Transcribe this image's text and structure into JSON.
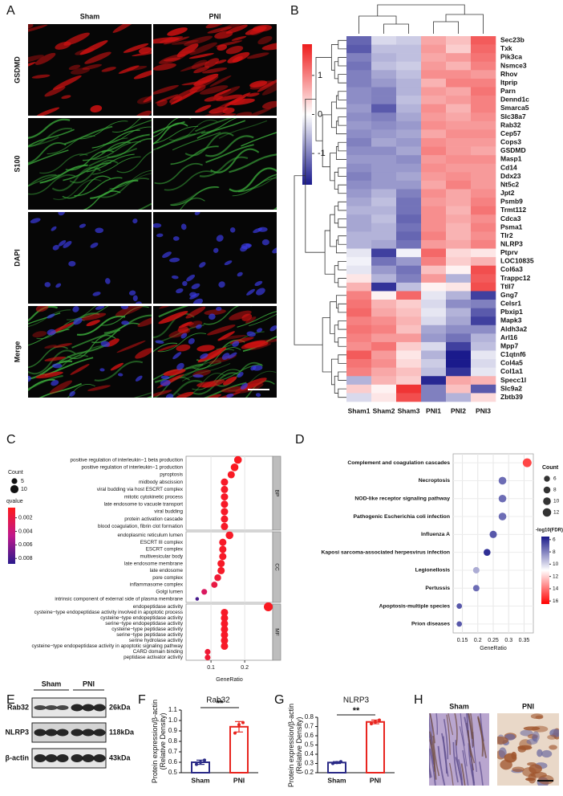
{
  "panel_labels": [
    "A",
    "B",
    "C",
    "D",
    "E",
    "F",
    "G",
    "H"
  ],
  "microscopy": {
    "columns": [
      "Sham",
      "PNI"
    ],
    "rows": [
      "GSDMD",
      "S100",
      "DAPI",
      "Merge"
    ]
  },
  "western_blot": {
    "groups": [
      "Sham",
      "PNI"
    ],
    "bands": [
      "Rab32",
      "NLRP3",
      "β-actin"
    ],
    "sizes": [
      "26kDa",
      "118kDa",
      "43kDa"
    ]
  },
  "ihc": {
    "columns": [
      "Sham",
      "PNI"
    ]
  },
  "chart_data": [
    {
      "type": "heatmap",
      "x": [
        "Sham1",
        "Sham2",
        "Sham3",
        "PNI1",
        "PNI2",
        "PNI3"
      ],
      "y": [
        "Sec23b",
        "Txk",
        "Pik3ca",
        "Nsmce3",
        "Rhov",
        "Itprip",
        "Parn",
        "Dennd1c",
        "Smarca5",
        "Slc38a7",
        "Rab32",
        "Cep57",
        "Cops3",
        "GSDMD",
        "Masp1",
        "Cd14",
        "Ddx23",
        "Nt5c2",
        "Jpt2",
        "Psmb9",
        "Trmt112",
        "Cdca3",
        "Psma1",
        "Tlr2",
        "NLRP3",
        "Ptprv",
        "LOC10835",
        "Col6a3",
        "Trappc12",
        "Ttll7",
        "Gng7",
        "Celsr1",
        "Pbxip1",
        "Mapk3",
        "Aldh3a2",
        "Arl16",
        "Mpp7",
        "C1qtnf6",
        "Col4a5",
        "Col1a1",
        "Specc1l",
        "Slc9a2",
        "Zbtb39"
      ],
      "values": [
        [
          -1.2,
          -0.3,
          -0.4,
          0.7,
          0.5,
          1.3
        ],
        [
          -1.3,
          -0.5,
          -0.5,
          0.8,
          0.4,
          1.2
        ],
        [
          -1.0,
          -0.6,
          -0.5,
          0.7,
          0.8,
          1.1
        ],
        [
          -1.1,
          -0.5,
          -0.4,
          0.8,
          0.6,
          1.0
        ],
        [
          -1.0,
          -0.7,
          -0.5,
          0.9,
          0.9,
          0.8
        ],
        [
          -1.0,
          -0.8,
          -0.6,
          0.6,
          1.0,
          1.0
        ],
        [
          -0.9,
          -1.0,
          -0.6,
          0.8,
          0.7,
          1.1
        ],
        [
          -0.9,
          -1.0,
          -0.5,
          0.7,
          0.8,
          1.0
        ],
        [
          -0.8,
          -1.3,
          -0.6,
          0.9,
          0.6,
          1.0
        ],
        [
          -0.9,
          -1.0,
          -0.7,
          0.8,
          0.7,
          0.9
        ],
        [
          -0.8,
          -0.9,
          -0.8,
          0.9,
          0.8,
          0.8
        ],
        [
          -0.9,
          -0.8,
          -0.7,
          0.7,
          0.9,
          0.9
        ],
        [
          -1.0,
          -0.7,
          -0.8,
          0.9,
          0.8,
          0.8
        ],
        [
          -0.9,
          -0.9,
          -0.7,
          1.0,
          0.8,
          0.7
        ],
        [
          -0.8,
          -0.8,
          -0.9,
          0.8,
          0.9,
          0.9
        ],
        [
          -0.9,
          -0.8,
          -0.8,
          0.9,
          0.8,
          0.8
        ],
        [
          -1.0,
          -0.8,
          -0.7,
          0.8,
          0.9,
          0.8
        ],
        [
          -0.9,
          -0.8,
          -0.8,
          0.7,
          1.0,
          0.8
        ],
        [
          -0.8,
          -0.6,
          -1.0,
          0.9,
          0.7,
          0.9
        ],
        [
          -0.7,
          -0.5,
          -1.1,
          0.8,
          0.7,
          1.0
        ],
        [
          -0.6,
          -0.6,
          -1.1,
          0.9,
          0.6,
          1.1
        ],
        [
          -0.7,
          -0.5,
          -1.2,
          0.9,
          0.7,
          0.9
        ],
        [
          -0.7,
          -0.6,
          -1.1,
          0.9,
          0.6,
          1.0
        ],
        [
          -0.6,
          -0.6,
          -1.2,
          1.0,
          0.6,
          0.9
        ],
        [
          -0.6,
          -0.7,
          -1.1,
          0.8,
          0.7,
          1.0
        ],
        [
          -0.2,
          -1.5,
          -0.1,
          1.2,
          0.3,
          0.2
        ],
        [
          -0.1,
          -1.1,
          -0.8,
          1.0,
          0.4,
          0.6
        ],
        [
          -0.2,
          -0.8,
          -1.1,
          0.5,
          0.1,
          1.4
        ],
        [
          0.2,
          -0.6,
          -1.0,
          0.8,
          -0.6,
          1.3
        ],
        [
          0.6,
          -1.6,
          -0.5,
          0.1,
          0.2,
          1.4
        ],
        [
          1.0,
          0.1,
          1.2,
          -0.2,
          -0.6,
          -1.5
        ],
        [
          1.1,
          0.6,
          0.4,
          -0.3,
          -0.9,
          -1.0
        ],
        [
          1.2,
          0.7,
          0.5,
          -0.2,
          -0.6,
          -1.3
        ],
        [
          1.0,
          0.9,
          0.6,
          -0.3,
          -0.7,
          -1.5
        ],
        [
          1.1,
          1.0,
          0.5,
          -0.7,
          -0.9,
          -0.9
        ],
        [
          1.0,
          0.8,
          0.8,
          -0.8,
          -1.1,
          -0.6
        ],
        [
          0.9,
          1.1,
          0.4,
          -0.3,
          -1.5,
          -0.5
        ],
        [
          1.3,
          0.8,
          0.2,
          -0.6,
          -1.8,
          -0.2
        ],
        [
          1.1,
          0.9,
          0.3,
          -0.4,
          -1.8,
          -0.3
        ],
        [
          1.0,
          0.7,
          0.5,
          -0.5,
          -1.6,
          -0.2
        ],
        [
          -0.6,
          0.6,
          0.4,
          -1.7,
          0.7,
          0.6
        ],
        [
          0.4,
          0.1,
          1.6,
          -1.0,
          0.5,
          -1.3
        ],
        [
          -0.3,
          0.2,
          1.4,
          -1.0,
          -0.6,
          0.3
        ]
      ],
      "zlim": [
        -1.8,
        1.8
      ],
      "colorbar_ticks": [
        1,
        0,
        -1
      ],
      "colors": [
        "#1a1a8c",
        "#ffffff",
        "#ee1c1c"
      ],
      "highlighted": [
        10,
        24
      ],
      "highlight_color": "#e8251f"
    },
    {
      "type": "dot",
      "x_label": "GeneRatio",
      "xlim": [
        0.026,
        0.283
      ],
      "xticks": [
        0.1,
        0.2
      ],
      "grid": true,
      "facets": [
        {
          "name": "BP",
          "categories": [
            "positive regulation of interleukin−1 beta production",
            "positive regulation of interleukin−1 production",
            "pyroptosis",
            "midbody abscission",
            "viral budding via host ESCRT complex",
            "mitotic cytokinetic process",
            "late endosome to vacuole transport",
            "viral budding",
            "protein activation cascade",
            "blood coagulation, fibrin clot formation"
          ],
          "values": [
            0.18,
            0.17,
            0.16,
            0.14,
            0.14,
            0.14,
            0.14,
            0.14,
            0.14,
            0.14
          ],
          "sizes": [
            9,
            9,
            8,
            8,
            8,
            8,
            8,
            8,
            8,
            8
          ],
          "color_values": [
            0.0008,
            0.0008,
            0.0009,
            0.001,
            0.001,
            0.001,
            0.001,
            0.001,
            0.001,
            0.001
          ],
          "highlighted": [
            2
          ]
        },
        {
          "name": "CC",
          "categories": [
            "endoplasmic reticulum lumen",
            "ESCRT III complex",
            "ESCRT complex",
            "multivesicular body",
            "late endosome membrane",
            "late endosome",
            "pore complex",
            "inflammasome complex",
            "Golgi lumen",
            "intrinsic component of external side of plasma membrane"
          ],
          "values": [
            0.155,
            0.135,
            0.135,
            0.135,
            0.13,
            0.13,
            0.12,
            0.11,
            0.08,
            0.059
          ],
          "sizes": [
            9,
            8,
            8,
            8,
            8,
            8,
            7,
            6,
            5,
            2
          ],
          "color_values": [
            0.001,
            0.001,
            0.001,
            0.001,
            0.001,
            0.001,
            0.0015,
            0.002,
            0.003,
            0.008
          ],
          "highlighted": []
        },
        {
          "name": "MF",
          "categories": [
            "endopeptidase activity",
            "cysteine−type endopeptidase activity involved in apoptotic process",
            "cysteine−type endopeptidase activity",
            "serine−type endopeptidase activity",
            "cysteine−type peptidase activity",
            "serine−type peptidase activity",
            "serine hydrolase activity",
            "cysteine−type endopeptidase activity  in apoptotic signaling pathway",
            "CARD domain binding",
            "peptidase activator activity"
          ],
          "values": [
            0.27,
            0.14,
            0.14,
            0.14,
            0.14,
            0.14,
            0.14,
            0.14,
            0.09,
            0.09
          ],
          "sizes": [
            12,
            8,
            8,
            8,
            8,
            8,
            8,
            8,
            5,
            5
          ],
          "color_values": [
            0.0008,
            0.001,
            0.001,
            0.001,
            0.001,
            0.001,
            0.001,
            0.001,
            0.0015,
            0.0015
          ],
          "highlighted": []
        }
      ],
      "size_title": "Count",
      "size_ticks": [
        5,
        10
      ],
      "color_title": "qvalue",
      "clim": [
        0.0005,
        0.0088
      ],
      "color_ticks": [
        0.002,
        0.004,
        0.006,
        0.008
      ],
      "colors": [
        "#ff1a1a",
        "#c0188c",
        "#2a1a8c"
      ],
      "highlight_color": "#e8251f"
    },
    {
      "type": "dot",
      "x_label": "GeneRatio",
      "xlim": [
        0.12,
        0.38
      ],
      "xticks": [
        0.15,
        0.2,
        0.25,
        0.3,
        0.35
      ],
      "grid": true,
      "categories": [
        "Complement and coagulation cascades",
        "Necroptosis",
        "NOD-like receptor signaling pathway",
        "Pathogenic Escherichia coli infection",
        "Influenza A",
        "Kaposi  sarcoma-associated herpesvirus infection",
        "Legionellosis",
        "Pertussis",
        "Apoptosis-multiple species",
        "Prion diseases"
      ],
      "values": [
        0.36,
        0.28,
        0.28,
        0.28,
        0.25,
        0.23,
        0.195,
        0.195,
        0.14,
        0.14
      ],
      "sizes": [
        13,
        10,
        10,
        10,
        9,
        8,
        7,
        7,
        5,
        5
      ],
      "color_values": [
        15,
        7.5,
        7.5,
        7.5,
        7,
        6,
        9,
        7.5,
        7,
        7
      ],
      "highlighted": [
        2
      ],
      "highlight_color": "#e8251f",
      "size_title": "Count",
      "size_ticks": [
        6,
        8,
        10,
        12
      ],
      "color_title": "-log10(FDR)",
      "clim": [
        5.5,
        16.5
      ],
      "color_ticks": [
        6,
        8,
        10,
        12,
        14,
        16
      ],
      "colors": [
        "#1a1a8a",
        "#ffffff",
        "#ff0000"
      ]
    },
    {
      "type": "bar",
      "title": "Rab32",
      "y_label": "Protein expression/β-actin (Relative Density)",
      "categories": [
        "Sham",
        "PNI"
      ],
      "colors": [
        "#2a2a86",
        "#e8251f"
      ],
      "values": [
        0.6,
        0.94
      ],
      "errors": [
        0.02,
        0.05
      ],
      "points": [
        [
          0.58,
          0.6,
          0.62
        ],
        [
          0.88,
          0.96,
          0.98
        ]
      ],
      "ylim": [
        0.5,
        1.1
      ],
      "yticks": [
        0.5,
        0.6,
        0.7,
        0.8,
        0.9,
        {
          "value": 1,
          "label": "1.0"
        },
        1.1
      ],
      "annotation": "**"
    },
    {
      "type": "bar",
      "title": "NLRP3",
      "y_label": "Protein expression/β-actin (Relative Density)",
      "categories": [
        "Sham",
        "PNI"
      ],
      "colors": [
        "#2a2a86",
        "#e8251f"
      ],
      "values": [
        0.31,
        0.75
      ],
      "errors": [
        0.01,
        0.02
      ],
      "points": [
        [
          0.3,
          0.31,
          0.32
        ],
        [
          0.73,
          0.75,
          0.77
        ]
      ],
      "ylim": [
        0.2,
        0.8
      ],
      "yticks": [
        0.2,
        0.3,
        0.4,
        0.5,
        0.6,
        0.7,
        0.8
      ],
      "annotation": "**"
    }
  ]
}
